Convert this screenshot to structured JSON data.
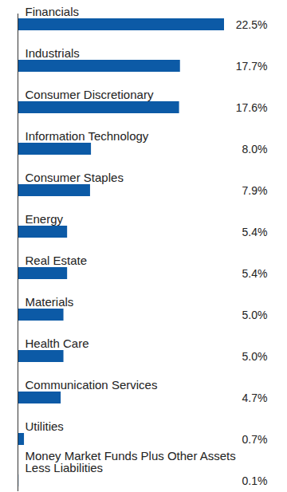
{
  "chart_data": {
    "type": "bar",
    "orientation": "horizontal",
    "categories": [
      "Financials",
      "Industrials",
      "Consumer Discretionary",
      "Information Technology",
      "Consumer Staples",
      "Energy",
      "Real Estate",
      "Materials",
      "Health Care",
      "Communication Services",
      "Utilities",
      "Money Market Funds Plus Other Assets Less Liabilities"
    ],
    "values": [
      22.5,
      17.7,
      17.6,
      8.0,
      7.9,
      5.4,
      5.4,
      5.0,
      5.0,
      4.7,
      0.7,
      0.1
    ],
    "value_labels": [
      "22.5%",
      "17.7%",
      "17.6%",
      "8.0%",
      "7.9%",
      "5.4%",
      "5.4%",
      "5.0%",
      "5.0%",
      "4.7%",
      "0.7%",
      "0.1%"
    ],
    "color": "#0c5aa6",
    "xlim": [
      0,
      22.5
    ],
    "data_labels": true,
    "tick_labels": false,
    "grid": false
  }
}
